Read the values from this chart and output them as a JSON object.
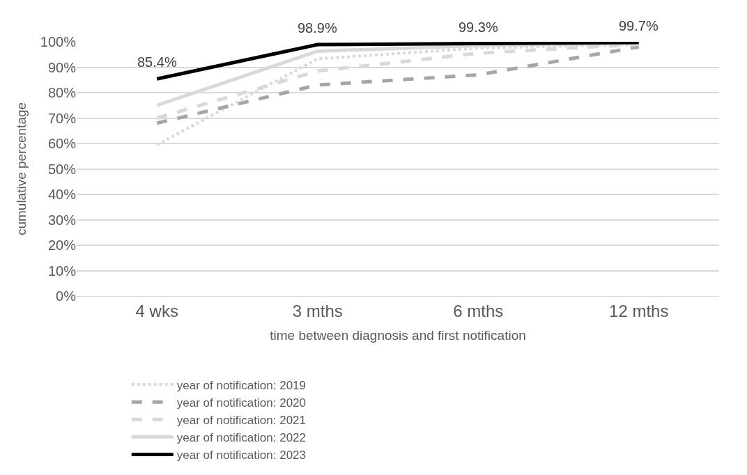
{
  "chart_data": {
    "type": "line",
    "xlabel": "time between diagnosis and first notification",
    "ylabel": "cumulative percentage",
    "categories": [
      "4 wks",
      "3 mths",
      "6 mths",
      "12 mths"
    ],
    "ylim": [
      0,
      100
    ],
    "yticks": [
      {
        "value": 0,
        "label": "0%"
      },
      {
        "value": 10,
        "label": "10%"
      },
      {
        "value": 20,
        "label": "20%"
      },
      {
        "value": 30,
        "label": "30%"
      },
      {
        "value": 40,
        "label": "40%"
      },
      {
        "value": 50,
        "label": "50%"
      },
      {
        "value": 60,
        "label": "60%"
      },
      {
        "value": 70,
        "label": "70%"
      },
      {
        "value": 80,
        "label": "80%"
      },
      {
        "value": 90,
        "label": "90%"
      },
      {
        "value": 100,
        "label": "100%"
      }
    ],
    "grid": "y",
    "legend": "bottom",
    "marker": "none",
    "series": [
      {
        "name": "year of notification: 2019",
        "color": "#d9d9d9",
        "line_style": "dotted",
        "values": [
          59.5,
          93.3,
          97.5,
          99
        ]
      },
      {
        "name": "year of notification: 2020",
        "color": "#a6a6a6",
        "line_style": "dashed",
        "values": [
          68,
          83,
          87,
          98
        ]
      },
      {
        "name": "year of notification: 2021",
        "color": "#d9d9d9",
        "line_style": "dashed",
        "values": [
          70,
          88.5,
          95.5,
          99
        ]
      },
      {
        "name": "year of notification: 2022",
        "color": "#d9d9d9",
        "line_style": "solid",
        "values": [
          75,
          96.3,
          98.5,
          99.5
        ]
      },
      {
        "name": "year of notification: 2023",
        "color": "#000000",
        "line_style": "solid",
        "values": [
          85.4,
          98.9,
          99.3,
          99.7
        ],
        "value_labels": [
          "85.4%",
          "98.9%",
          "99.3%",
          "99.7%"
        ]
      }
    ]
  }
}
